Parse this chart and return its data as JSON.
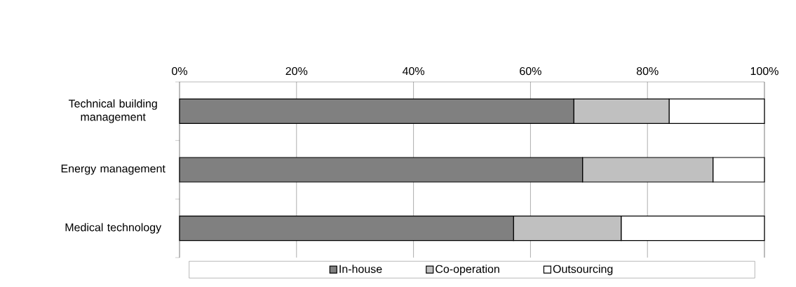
{
  "chart_data": {
    "type": "bar",
    "orientation": "horizontal",
    "stacked": true,
    "categories": [
      "Technical building management",
      "Energy management",
      "Medical technology"
    ],
    "series": [
      {
        "name": "In-house",
        "color": "#808080",
        "values": [
          67.4,
          68.9,
          57.1
        ]
      },
      {
        "name": "Co-operation",
        "color": "#c0c0c0",
        "values": [
          16.3,
          22.3,
          18.4
        ]
      },
      {
        "name": "Outsourcing",
        "color": "#ffffff",
        "values": [
          16.3,
          8.8,
          24.5
        ]
      }
    ],
    "xlim": [
      0,
      100
    ],
    "xticks": [
      {
        "value": 0,
        "label": "0%"
      },
      {
        "value": 20,
        "label": "20%"
      },
      {
        "value": 40,
        "label": "40%"
      },
      {
        "value": 60,
        "label": "60%"
      },
      {
        "value": 80,
        "label": "80%"
      },
      {
        "value": 100,
        "label": "100%"
      }
    ],
    "grid": "x",
    "legend": "bottom"
  }
}
